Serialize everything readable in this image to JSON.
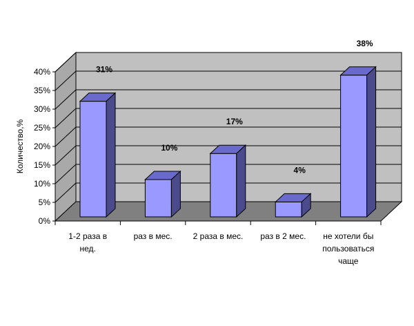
{
  "chart_data": {
    "type": "bar",
    "title": "",
    "xlabel": "",
    "ylabel": "Количество,%",
    "categories": [
      [
        "1-2 раза в",
        "нед."
      ],
      [
        "раз в мес."
      ],
      [
        "2 раза в мес."
      ],
      [
        "раз в 2 мес."
      ],
      [
        "не хотели бы",
        "пользоваться",
        "чаще"
      ]
    ],
    "values": [
      31,
      10,
      17,
      4,
      38
    ],
    "data_labels": [
      "31%",
      "10%",
      "17%",
      "4%",
      "38%"
    ],
    "yticks": [
      "0%",
      "5%",
      "10%",
      "15%",
      "20%",
      "25%",
      "30%",
      "35%",
      "40%"
    ],
    "ylim": [
      0,
      40
    ],
    "grid": true,
    "legend": "none",
    "style": "3d-column",
    "colors": {
      "bar_front": "#9999FF",
      "bar_top": "#6A6ACC",
      "bar_side": "#4A4A8C",
      "back_wall": "#C0C0C0",
      "side_wall": "#A9A9A9",
      "floor": "#808080"
    }
  }
}
